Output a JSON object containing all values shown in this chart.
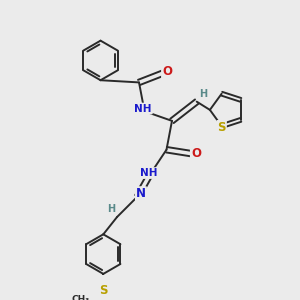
{
  "bg_color": "#ebebeb",
  "bond_color": "#2a2a2a",
  "bond_width": 1.4,
  "atom_colors": {
    "C": "#2a2a2a",
    "N": "#1a1acc",
    "O": "#cc1a1a",
    "S": "#b8a000",
    "H": "#5a8a8a"
  },
  "font_size": 7.5,
  "fig_size": [
    3.0,
    3.0
  ],
  "dpi": 100,
  "xlim": [
    0,
    10
  ],
  "ylim": [
    0,
    10
  ]
}
